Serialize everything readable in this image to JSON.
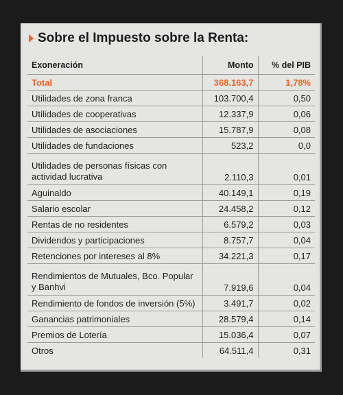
{
  "title": "Sobre el Impuesto sobre la Renta:",
  "columns": {
    "label": "Exoneración",
    "amount": "Monto",
    "pct": "% del PIB"
  },
  "total": {
    "label": "Total",
    "amount": "368.163,7",
    "pct": "1,78%"
  },
  "rows": [
    {
      "label": "Utilidades de zona franca",
      "amount": "103.700,4",
      "pct": "0,50"
    },
    {
      "label": "Utilidades de cooperativas",
      "amount": "12.337,9",
      "pct": "0,06"
    },
    {
      "label": "Utilidades de asociaciones",
      "amount": "15.787,9",
      "pct": "0,08"
    },
    {
      "label": "Utilidades de fundaciones",
      "amount": "523,2",
      "pct": "0,0"
    },
    {
      "label": "Utilidades de personas físicas con actividad lucrativa",
      "amount": "2.110,3",
      "pct": "0,01"
    },
    {
      "label": "Aguinaldo",
      "amount": "40.149,1",
      "pct": "0,19"
    },
    {
      "label": "Salario escolar",
      "amount": "24.458,2",
      "pct": "0,12"
    },
    {
      "label": "Rentas de no residentes",
      "amount": "6.579,2",
      "pct": "0,03"
    },
    {
      "label": "Dividendos y participaciones",
      "amount": "8.757,7",
      "pct": "0,04"
    },
    {
      "label": "Retenciones por intereses al 8%",
      "amount": "34.221,3",
      "pct": "0,17"
    },
    {
      "label": "Rendimientos de Mutuales, Bco. Popular y Banhvi",
      "amount": "7.919,6",
      "pct": "0,04"
    },
    {
      "label": "Rendimiento de fondos de inversión (5%)",
      "amount": "3.491,7",
      "pct": "0,02"
    },
    {
      "label": "Ganancias patrimoniales",
      "amount": "28.579,4",
      "pct": "0,14"
    },
    {
      "label": "Premios de Lotería",
      "amount": "15.036,4",
      "pct": "0,07"
    },
    {
      "label": "Otros",
      "amount": "64.511,4",
      "pct": "0,31"
    }
  ],
  "colors": {
    "accent": "#e8662a",
    "panel": "#e5e5e3",
    "background": "#1b1b1b"
  },
  "icons": {
    "title_marker": "triangle-right-icon"
  }
}
